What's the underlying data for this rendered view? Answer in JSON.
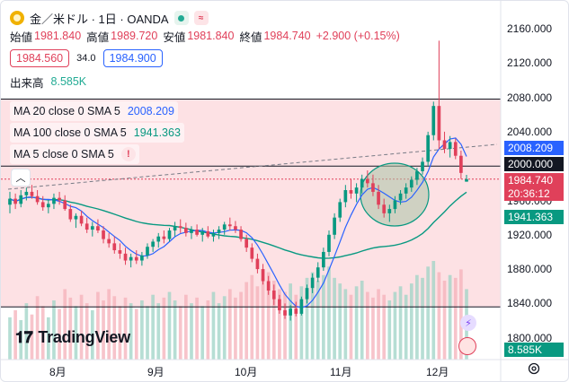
{
  "header": {
    "symbol": "金／米ドル · 1日 · OANDA",
    "live_icon": "green-dot-icon",
    "indicator_icon": "wave-icon"
  },
  "ohlc": {
    "open_label": "始値",
    "open": "1981.840",
    "high_label": "高値",
    "high": "1989.720",
    "low_label": "安値",
    "low": "1981.840",
    "close_label": "終値",
    "close": "1984.740",
    "change": "+2.900 (+0.15%)"
  },
  "quote": {
    "sell": "1984.560",
    "spread": "34.0",
    "buy": "1984.900"
  },
  "volume": {
    "label": "出来高",
    "value": "8.585K"
  },
  "indicators": [
    {
      "label": "MA 20 close 0 SMA 5",
      "value": "2008.209",
      "color": "#2962ff"
    },
    {
      "label": "MA 100 close 0 SMA 5",
      "value": "1941.363",
      "color": "#089981"
    },
    {
      "label": "MA 5 close 0 SMA 5",
      "value": "!",
      "color": "#e0405a"
    }
  ],
  "price_axis": {
    "ticks": [
      "2160.000",
      "2120.000",
      "2080.000",
      "2040.000",
      "2000.000",
      "1960.000",
      "1920.000",
      "1880.000",
      "1840.000",
      "1800.000"
    ],
    "tick_values": [
      2160,
      2120,
      2080,
      2040,
      2000,
      1960,
      1920,
      1880,
      1840,
      1800
    ],
    "ma20_tag": "2008.209",
    "level_tag": "2000.000",
    "last_price_tag": "1984.740",
    "countdown_tag": "20:36:12",
    "ma100_tag": "1941.363",
    "volume_tag": "8.585K"
  },
  "time_axis": {
    "labels": [
      "8月",
      "9月",
      "10月",
      "11月",
      "12月"
    ]
  },
  "branding": {
    "logo_text": "TradingView",
    "logo_icon": "tradingview-logo-icon"
  },
  "colors": {
    "up": "#089981",
    "down": "#e0405a",
    "zone": "#fde1e4",
    "ma20": "#2962ff",
    "ma100": "#089981"
  },
  "chart_data": {
    "type": "candlestick",
    "ylim": [
      1790,
      2170
    ],
    "horizontal_levels": [
      2000,
      2078,
      1836
    ],
    "candles": [
      [
        1955,
        1970,
        1945,
        1962
      ],
      [
        1962,
        1968,
        1950,
        1956
      ],
      [
        1956,
        1972,
        1952,
        1966
      ],
      [
        1966,
        1975,
        1960,
        1970
      ],
      [
        1970,
        1978,
        1962,
        1965
      ],
      [
        1965,
        1972,
        1955,
        1958
      ],
      [
        1958,
        1965,
        1948,
        1952
      ],
      [
        1952,
        1960,
        1945,
        1956
      ],
      [
        1956,
        1968,
        1950,
        1963
      ],
      [
        1963,
        1970,
        1955,
        1960
      ],
      [
        1960,
        1966,
        1948,
        1950
      ],
      [
        1950,
        1955,
        1935,
        1938
      ],
      [
        1938,
        1945,
        1928,
        1942
      ],
      [
        1942,
        1948,
        1930,
        1933
      ],
      [
        1933,
        1940,
        1922,
        1926
      ],
      [
        1926,
        1935,
        1918,
        1930
      ],
      [
        1930,
        1938,
        1922,
        1925
      ],
      [
        1925,
        1930,
        1910,
        1915
      ],
      [
        1915,
        1922,
        1905,
        1910
      ],
      [
        1910,
        1918,
        1898,
        1902
      ],
      [
        1902,
        1910,
        1892,
        1898
      ],
      [
        1898,
        1905,
        1885,
        1890
      ],
      [
        1890,
        1898,
        1882,
        1894
      ],
      [
        1894,
        1902,
        1886,
        1890
      ],
      [
        1890,
        1900,
        1884,
        1896
      ],
      [
        1896,
        1910,
        1892,
        1906
      ],
      [
        1906,
        1915,
        1900,
        1912
      ],
      [
        1912,
        1922,
        1905,
        1918
      ],
      [
        1918,
        1925,
        1910,
        1915
      ],
      [
        1915,
        1928,
        1912,
        1925
      ],
      [
        1925,
        1935,
        1918,
        1930
      ],
      [
        1930,
        1938,
        1922,
        1928
      ],
      [
        1928,
        1934,
        1918,
        1922
      ],
      [
        1922,
        1930,
        1915,
        1926
      ],
      [
        1926,
        1932,
        1918,
        1920
      ],
      [
        1920,
        1928,
        1912,
        1924
      ],
      [
        1924,
        1930,
        1916,
        1918
      ],
      [
        1918,
        1926,
        1912,
        1922
      ],
      [
        1922,
        1930,
        1915,
        1926
      ],
      [
        1926,
        1935,
        1920,
        1932
      ],
      [
        1932,
        1940,
        1925,
        1930
      ],
      [
        1930,
        1936,
        1922,
        1926
      ],
      [
        1926,
        1930,
        1912,
        1915
      ],
      [
        1915,
        1920,
        1900,
        1905
      ],
      [
        1905,
        1910,
        1888,
        1892
      ],
      [
        1892,
        1898,
        1875,
        1880
      ],
      [
        1880,
        1886,
        1862,
        1866
      ],
      [
        1866,
        1872,
        1850,
        1855
      ],
      [
        1855,
        1862,
        1838,
        1845
      ],
      [
        1845,
        1850,
        1828,
        1832
      ],
      [
        1832,
        1840,
        1822,
        1826
      ],
      [
        1826,
        1838,
        1820,
        1834
      ],
      [
        1834,
        1842,
        1825,
        1828
      ],
      [
        1828,
        1848,
        1826,
        1845
      ],
      [
        1845,
        1862,
        1840,
        1858
      ],
      [
        1858,
        1875,
        1852,
        1870
      ],
      [
        1870,
        1888,
        1865,
        1882
      ],
      [
        1882,
        1905,
        1878,
        1900
      ],
      [
        1900,
        1925,
        1895,
        1920
      ],
      [
        1920,
        1945,
        1915,
        1940
      ],
      [
        1940,
        1962,
        1935,
        1958
      ],
      [
        1958,
        1978,
        1952,
        1972
      ],
      [
        1972,
        1985,
        1962,
        1968
      ],
      [
        1968,
        1980,
        1958,
        1975
      ],
      [
        1975,
        1990,
        1968,
        1985
      ],
      [
        1985,
        1995,
        1975,
        1980
      ],
      [
        1980,
        1990,
        1965,
        1970
      ],
      [
        1970,
        1978,
        1950,
        1955
      ],
      [
        1955,
        1962,
        1940,
        1945
      ],
      [
        1945,
        1955,
        1935,
        1950
      ],
      [
        1950,
        1965,
        1945,
        1960
      ],
      [
        1960,
        1972,
        1955,
        1968
      ],
      [
        1968,
        1980,
        1962,
        1975
      ],
      [
        1975,
        1988,
        1970,
        1984
      ],
      [
        1984,
        1998,
        1978,
        1994
      ],
      [
        1994,
        2010,
        1990,
        2005
      ],
      [
        2005,
        2040,
        2000,
        2036
      ],
      [
        2036,
        2075,
        2030,
        2070
      ],
      [
        2070,
        2146,
        2020,
        2030
      ],
      [
        2030,
        2040,
        2015,
        2020
      ],
      [
        2020,
        2035,
        2010,
        2028
      ],
      [
        2028,
        2032,
        2008,
        2012
      ],
      [
        2012,
        2018,
        1985,
        1992
      ],
      [
        1981.84,
        1989.72,
        1981.84,
        1984.74
      ]
    ],
    "volumes": [
      30,
      35,
      28,
      40,
      32,
      45,
      38,
      30,
      42,
      36,
      50,
      44,
      38,
      46,
      40,
      35,
      48,
      42,
      50,
      45,
      38,
      44,
      40,
      36,
      42,
      38,
      46,
      40,
      44,
      48,
      42,
      38,
      46,
      40,
      44,
      38,
      42,
      48,
      40,
      45,
      50,
      44,
      48,
      55,
      60,
      52,
      58,
      62,
      56,
      50,
      48,
      54,
      46,
      52,
      58,
      62,
      56,
      60,
      66,
      58,
      54,
      50,
      46,
      52,
      56,
      48,
      44,
      50,
      46,
      42,
      48,
      52,
      46,
      54,
      60,
      58,
      66,
      70,
      62,
      56,
      60,
      58,
      64,
      50
    ]
  }
}
